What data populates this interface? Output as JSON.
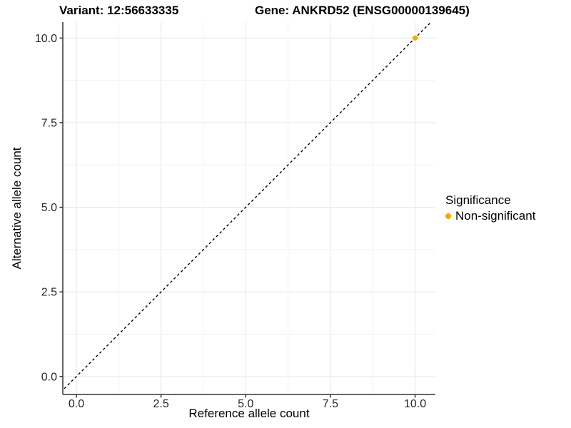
{
  "header": {
    "title_left": "Variant: 12:56633335",
    "title_right": "Gene: ANKRD52 (ENSG00000139645)"
  },
  "chart_data": {
    "type": "scatter",
    "title_left": "Variant: 12:56633335",
    "title_right": "Gene: ANKRD52 (ENSG00000139645)",
    "xlabel": "Reference allele count",
    "ylabel": "Alternative allele count",
    "xlim": [
      -0.4,
      10.6
    ],
    "ylim": [
      -0.53,
      10.47
    ],
    "x_ticks": {
      "values": [
        0,
        2.5,
        5,
        7.5,
        10
      ],
      "labels": [
        "0.0",
        "2.5",
        "5.0",
        "7.5",
        "10.0"
      ]
    },
    "y_ticks": {
      "values": [
        0,
        2.5,
        5,
        7.5,
        10
      ],
      "labels": [
        "0.0",
        "2.5",
        "5.0",
        "7.5",
        "10.0"
      ]
    },
    "minor_ticks": [
      1.25,
      3.75,
      6.25,
      8.75
    ],
    "grid": true,
    "identity_line": {
      "type": "dashed",
      "slope": 1,
      "intercept": 0,
      "color": "#000000"
    },
    "series": [
      {
        "name": "Non-significant",
        "color": "#FFA500",
        "points": [
          {
            "x": 10,
            "y": 10
          }
        ]
      }
    ],
    "legend": {
      "title": "Significance",
      "position": "right",
      "items": [
        {
          "label": "Non-significant",
          "color": "#FFA500"
        }
      ]
    },
    "colors": {
      "grid_major": "#E6E6E6",
      "grid_minor": "#F2F2F2",
      "axis_line": "#333333",
      "tick_text": "#262626"
    }
  }
}
